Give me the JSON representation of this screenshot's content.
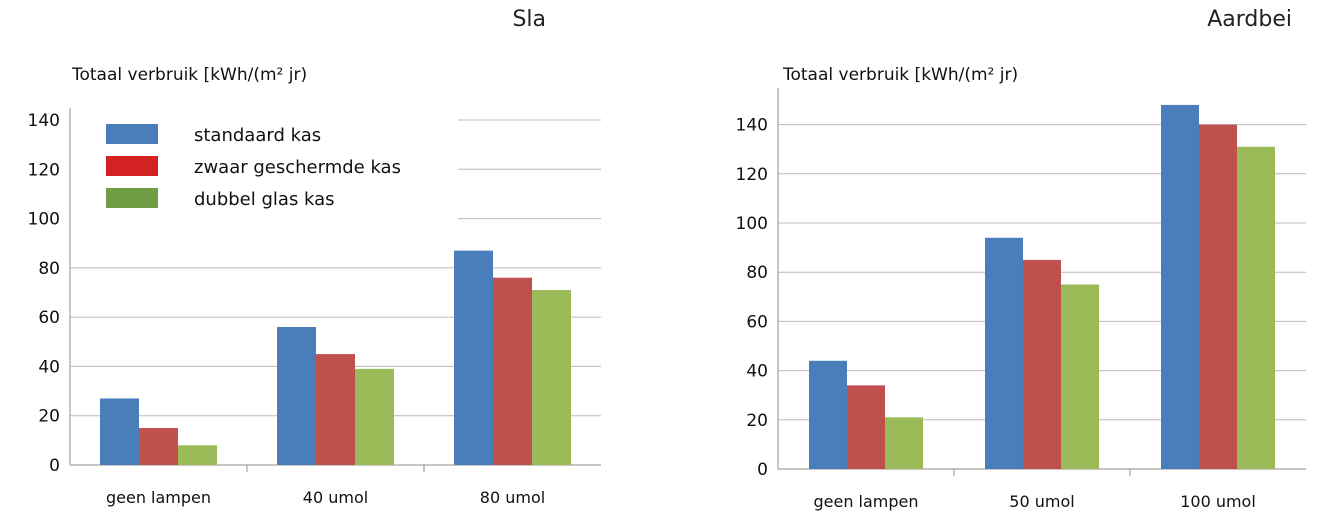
{
  "chart_data": [
    {
      "type": "bar",
      "crop_title": "Sla",
      "ylabel": "Totaal verbruik [kWh/(m² jr)",
      "ylim": [
        0,
        140
      ],
      "yticks": [
        0,
        20,
        40,
        60,
        80,
        100,
        120,
        140
      ],
      "categories": [
        "geen lampen",
        "40 umol",
        "80 umol"
      ],
      "series": [
        {
          "name": "standaard kas",
          "color": "#4a7ebb",
          "values": [
            27,
            56,
            87
          ]
        },
        {
          "name": "zwaar geschermde kas",
          "color": "#c0504d",
          "values": [
            15,
            45,
            76
          ]
        },
        {
          "name": "dubbel glas kas",
          "color": "#9bbb59",
          "values": [
            8,
            39,
            71
          ]
        }
      ],
      "legend": {
        "placement": "top-left",
        "items": [
          {
            "label": "standaard kas",
            "color": "#4a7ebb"
          },
          {
            "label": "zwaar geschermde kas",
            "color": "#d32222"
          },
          {
            "label": "dubbel glas kas",
            "color": "#6f9d45"
          }
        ]
      },
      "grid": true
    },
    {
      "type": "bar",
      "crop_title": "Aardbei",
      "ylabel": "Totaal verbruik [kWh/(m² jr)",
      "ylim": [
        0,
        150
      ],
      "yticks": [
        0,
        20,
        40,
        60,
        80,
        100,
        120,
        140
      ],
      "categories": [
        "geen lampen",
        "50 umol",
        "100 umol"
      ],
      "series": [
        {
          "name": "standaard kas",
          "color": "#4a7ebb",
          "values": [
            44,
            94,
            148
          ]
        },
        {
          "name": "zwaar geschermde kas",
          "color": "#c0504d",
          "values": [
            34,
            85,
            140
          ]
        },
        {
          "name": "dubbel glas kas",
          "color": "#9bbb59",
          "values": [
            21,
            75,
            131
          ]
        }
      ],
      "grid": true
    }
  ]
}
